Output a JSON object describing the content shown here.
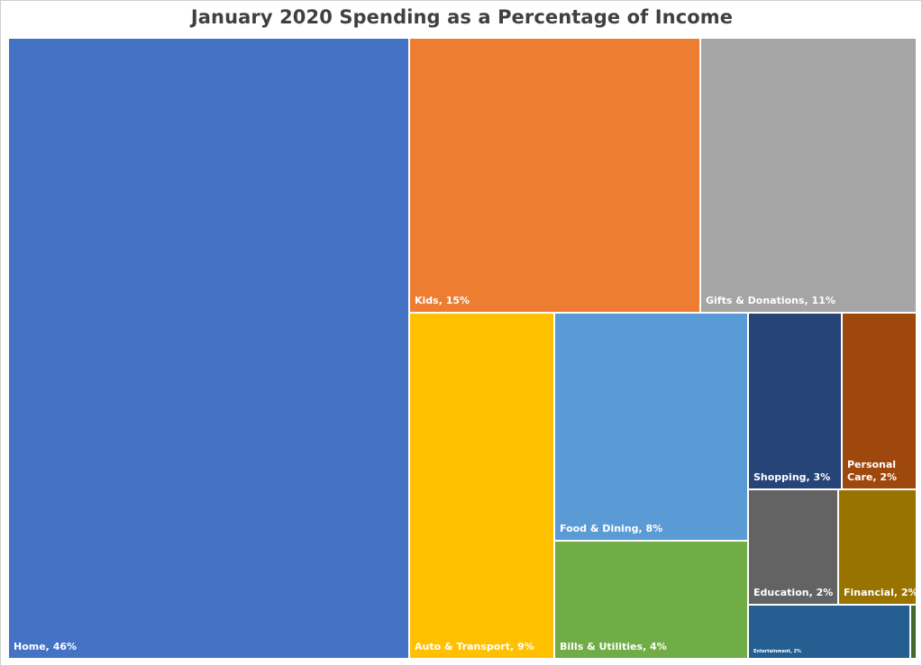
{
  "chart_data": {
    "type": "treemap",
    "title": "January 2020 Spending as a Percentage of Income",
    "value_unit": "%",
    "items": [
      {
        "name": "Home",
        "value": 46,
        "label": "Home, 46%",
        "color": "#4472C4"
      },
      {
        "name": "Kids",
        "value": 15,
        "label": "Kids, 15%",
        "color": "#ED7D31"
      },
      {
        "name": "Gifts & Donations",
        "value": 11,
        "label": "Gifts & Donations, 11%",
        "color": "#A5A5A5"
      },
      {
        "name": "Auto & Transport",
        "value": 9,
        "label": "Auto & Transport, 9%",
        "color": "#FFC000"
      },
      {
        "name": "Food & Dining",
        "value": 8,
        "label": "Food & Dining, 8%",
        "color": "#5B9BD5"
      },
      {
        "name": "Bills & Utilities",
        "value": 4,
        "label": "Bills & Utilities, 4%",
        "color": "#70AD47"
      },
      {
        "name": "Shopping",
        "value": 3,
        "label": "Shopping, 3%",
        "color": "#264478"
      },
      {
        "name": "Personal Care",
        "value": 2,
        "label": "Personal Care, 2%",
        "color": "#9E480E"
      },
      {
        "name": "Education",
        "value": 2,
        "label": "Education, 2%",
        "color": "#636363"
      },
      {
        "name": "Financial",
        "value": 2,
        "label": "Financial, 2%",
        "color": "#997300"
      },
      {
        "name": "Entertainment",
        "value": 2,
        "label": "Entertainment, 2%",
        "color": "#255E91"
      },
      {
        "name": "",
        "value": 0,
        "label": "",
        "color": "#43682B"
      }
    ]
  }
}
